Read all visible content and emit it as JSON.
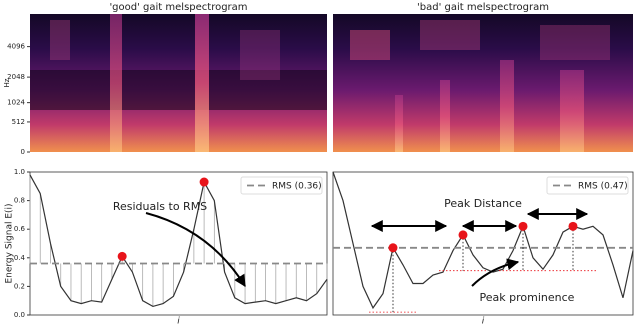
{
  "chart_data": [
    {
      "type": "spectrogram",
      "title": "'good' gait melspectrogram",
      "ylabel": "Hz",
      "yscale": "mel",
      "ylim": [
        0,
        8000
      ],
      "yticks": [
        0,
        512,
        1024,
        2048,
        4096
      ]
    },
    {
      "type": "spectrogram",
      "title": "'bad' gait melspectrogram",
      "yscale": "mel",
      "ylim": [
        0,
        8000
      ]
    },
    {
      "type": "line",
      "xlabel": "i",
      "ylabel": "Energy Signal E(i)",
      "color": "#333333",
      "x": [
        0,
        1,
        2,
        3,
        4,
        5,
        6,
        7,
        8,
        9,
        10,
        11,
        12,
        13,
        14,
        15,
        16,
        17,
        18,
        19,
        20,
        21,
        22,
        23,
        24,
        25,
        26,
        27,
        28,
        29
      ],
      "values": [
        0.98,
        0.85,
        0.5,
        0.2,
        0.1,
        0.08,
        0.1,
        0.09,
        0.25,
        0.41,
        0.3,
        0.1,
        0.06,
        0.08,
        0.13,
        0.3,
        0.6,
        0.93,
        0.8,
        0.3,
        0.12,
        0.08,
        0.09,
        0.1,
        0.08,
        0.1,
        0.12,
        0.1,
        0.15,
        0.25
      ],
      "xlim": [
        0,
        29
      ],
      "ylim": [
        0,
        1
      ],
      "yticks": [
        {
          "value": 0,
          "label": "0.0"
        },
        0.2,
        0.4,
        0.6,
        0.8,
        {
          "value": 1,
          "label": "1.0"
        }
      ],
      "rms": 0.36,
      "rms_label": "RMS (0.36)",
      "rms_color": "#888888",
      "peak_indices": [
        9,
        17
      ],
      "peak_color": "#e8141a",
      "residuals": true,
      "annotations": [
        "Residuals to RMS"
      ]
    },
    {
      "type": "line",
      "xlabel": "i",
      "color": "#333333",
      "x": [
        0,
        1,
        2,
        3,
        4,
        5,
        6,
        7,
        8,
        9,
        10,
        11,
        12,
        13,
        14,
        15,
        16,
        17,
        18,
        19,
        20,
        21,
        22,
        23,
        24,
        25,
        26,
        27,
        28,
        29,
        30
      ],
      "values": [
        1.0,
        0.8,
        0.5,
        0.2,
        0.05,
        0.15,
        0.47,
        0.35,
        0.22,
        0.22,
        0.28,
        0.3,
        0.45,
        0.56,
        0.42,
        0.33,
        0.3,
        0.32,
        0.45,
        0.62,
        0.4,
        0.32,
        0.42,
        0.58,
        0.62,
        0.6,
        0.62,
        0.56,
        0.35,
        0.12,
        0.45
      ],
      "xlim": [
        0,
        30
      ],
      "ylim": [
        0,
        1
      ],
      "rms": 0.47,
      "rms_label": "RMS (0.47)",
      "rms_color": "#888888",
      "peak_indices": [
        6,
        13,
        19,
        24
      ],
      "peak_color": "#e8141a",
      "prominence_bases": [
        0.02,
        0.31,
        0.31,
        0.31
      ],
      "annotations": [
        "Peak Distance",
        "Peak prominence"
      ]
    }
  ]
}
